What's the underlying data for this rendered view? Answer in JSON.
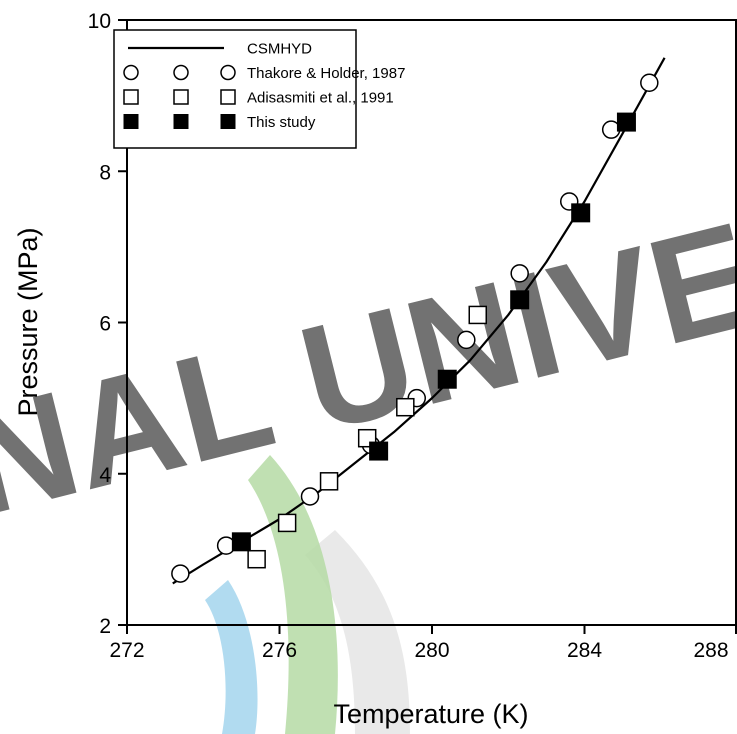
{
  "watermark": {
    "text": "ONAL UNIVER",
    "colors": {
      "text": "#dcdcdc",
      "arc_green": "#b5dba4",
      "arc_blue": "#a9d7ee",
      "arc_gray": "#e3e3e3"
    }
  },
  "chart_data": {
    "type": "scatter",
    "title": "",
    "xlabel": "Temperature (K)",
    "ylabel": "Pressure (MPa)",
    "xlim": [
      272,
      288
    ],
    "ylim": [
      2,
      10
    ],
    "x_ticks": [
      272,
      276,
      280,
      284,
      288
    ],
    "y_ticks": [
      2,
      4,
      6,
      8,
      10
    ],
    "grid": false,
    "legend_position": "top-left",
    "series": [
      {
        "name": "CSMHYD",
        "marker": "line",
        "x": [
          273.2,
          274.0,
          275.0,
          276.0,
          277.0,
          278.0,
          279.0,
          280.0,
          281.0,
          282.0,
          283.0,
          284.0,
          285.0,
          286.1
        ],
        "y": [
          2.55,
          2.8,
          3.1,
          3.4,
          3.75,
          4.15,
          4.55,
          5.0,
          5.5,
          6.1,
          6.8,
          7.6,
          8.5,
          9.5
        ]
      },
      {
        "name": "Thakore & Holder, 1987",
        "marker": "open-circle",
        "x": [
          273.4,
          274.6,
          276.8,
          278.4,
          279.6,
          280.9,
          282.3,
          283.6,
          284.7,
          285.7
        ],
        "y": [
          2.68,
          3.05,
          3.7,
          4.38,
          5.0,
          5.77,
          6.65,
          7.6,
          8.55,
          9.17
        ]
      },
      {
        "name": "Adisasmiti et al., 1991",
        "marker": "open-square",
        "x": [
          275.4,
          276.2,
          277.3,
          278.3,
          279.3,
          281.2
        ],
        "y": [
          2.87,
          3.35,
          3.9,
          4.47,
          4.88,
          6.1
        ]
      },
      {
        "name": "This study",
        "marker": "filled-square",
        "x": [
          275.0,
          278.6,
          280.4,
          282.3,
          283.9,
          285.1
        ],
        "y": [
          3.1,
          4.3,
          5.25,
          6.3,
          7.45,
          8.65
        ]
      }
    ]
  }
}
